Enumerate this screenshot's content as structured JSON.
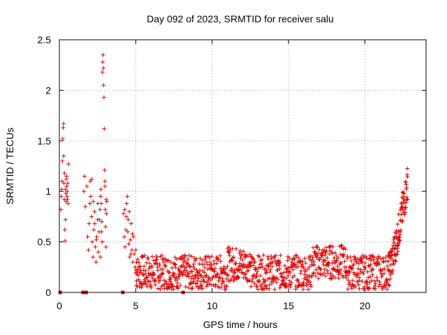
{
  "chart_data": {
    "type": "scatter",
    "title": "Day 092 of 2023, SRMTID for receiver salu",
    "xlabel": "GPS time / hours",
    "ylabel": "SRMTID / TECUs",
    "xlim": [
      0,
      24
    ],
    "ylim": [
      0,
      2.5
    ],
    "xticks": [
      0,
      5,
      10,
      15,
      20
    ],
    "xtick_labels": [
      "0",
      "5",
      "10",
      "15",
      "20"
    ],
    "yticks": [
      0,
      0.5,
      1,
      1.5,
      2,
      2.5
    ],
    "ytick_labels": [
      "0",
      "0.5",
      "1",
      "1.5",
      "2",
      "2.5"
    ],
    "grid": true,
    "marker": "+",
    "series": [
      {
        "name": "SRMTID",
        "color": "#e00000",
        "points": [
          [
            0.05,
            0.0
          ],
          [
            1.55,
            0.0
          ],
          [
            1.75,
            0.0
          ],
          [
            4.15,
            0.0
          ],
          [
            8.1,
            0.0
          ],
          [
            0.1,
            0.82
          ],
          [
            0.12,
            0.95
          ],
          [
            0.15,
            1.02
          ],
          [
            0.18,
            1.1
          ],
          [
            0.2,
            1.3
          ],
          [
            0.22,
            1.52
          ],
          [
            0.25,
            1.63
          ],
          [
            0.27,
            1.67
          ],
          [
            0.3,
            1.08
          ],
          [
            0.32,
            0.92
          ],
          [
            0.35,
            0.62
          ],
          [
            0.37,
            0.51
          ],
          [
            0.4,
            0.72
          ],
          [
            0.42,
            0.98
          ],
          [
            0.45,
            1.12
          ],
          [
            0.48,
            1.05
          ],
          [
            0.5,
            0.95
          ],
          [
            0.52,
            1.0
          ],
          [
            0.55,
            1.08
          ],
          [
            0.57,
            0.88
          ],
          [
            0.6,
            1.27
          ],
          [
            0.28,
            1.35
          ],
          [
            0.33,
            1.18
          ],
          [
            0.38,
            1.02
          ],
          [
            0.43,
            0.9
          ],
          [
            0.47,
            1.15
          ],
          [
            0.53,
            0.92
          ],
          [
            1.6,
            1.0
          ],
          [
            1.65,
            1.15
          ],
          [
            1.7,
            0.85
          ],
          [
            1.8,
            1.05
          ],
          [
            1.85,
            0.55
          ],
          [
            1.9,
            0.42
          ],
          [
            1.95,
            0.68
          ],
          [
            2.0,
            0.88
          ],
          [
            2.02,
            1.1
          ],
          [
            2.05,
            0.95
          ],
          [
            2.1,
            0.75
          ],
          [
            2.15,
            0.5
          ],
          [
            2.2,
            0.35
          ],
          [
            2.25,
            0.62
          ],
          [
            2.3,
            0.8
          ],
          [
            2.35,
            0.45
          ],
          [
            2.4,
            0.3
          ],
          [
            2.45,
            0.55
          ],
          [
            2.5,
            0.72
          ],
          [
            2.55,
            0.4
          ],
          [
            2.6,
            0.6
          ],
          [
            2.65,
            0.82
          ],
          [
            2.7,
            0.95
          ],
          [
            2.72,
            1.02
          ],
          [
            2.75,
            0.88
          ],
          [
            2.78,
            0.7
          ],
          [
            2.8,
            0.5
          ],
          [
            2.82,
            2.18
          ],
          [
            2.84,
            2.28
          ],
          [
            2.86,
            2.35
          ],
          [
            2.88,
            2.22
          ],
          [
            2.9,
            2.05
          ],
          [
            2.92,
            1.93
          ],
          [
            2.94,
            1.62
          ],
          [
            2.96,
            1.21
          ],
          [
            2.98,
            1.05
          ],
          [
            3.0,
            0.82
          ],
          [
            3.02,
            0.65
          ],
          [
            3.05,
            0.45
          ],
          [
            3.08,
            0.78
          ],
          [
            3.1,
            0.9
          ],
          [
            2.12,
            1.12
          ],
          [
            2.22,
            0.9
          ],
          [
            2.32,
            0.68
          ],
          [
            2.42,
            0.52
          ],
          [
            2.52,
            0.88
          ],
          [
            2.62,
            0.72
          ],
          [
            2.68,
            0.35
          ],
          [
            2.76,
            0.6
          ],
          [
            2.98,
            1.1
          ],
          [
            3.07,
            0.92
          ],
          [
            4.2,
            0.78
          ],
          [
            4.25,
            0.55
          ],
          [
            4.3,
            0.45
          ],
          [
            4.35,
            0.62
          ],
          [
            4.4,
            0.88
          ],
          [
            4.45,
            0.95
          ],
          [
            4.5,
            0.72
          ],
          [
            4.55,
            0.48
          ],
          [
            4.6,
            0.35
          ],
          [
            4.65,
            0.52
          ],
          [
            4.7,
            0.68
          ],
          [
            4.75,
            0.42
          ],
          [
            4.8,
            0.3
          ],
          [
            4.85,
            0.55
          ],
          [
            4.9,
            0.38
          ],
          [
            4.95,
            0.25
          ],
          [
            5.0,
            0.42
          ],
          [
            5.05,
            0.3
          ],
          [
            4.28,
            0.82
          ],
          [
            4.38,
            0.75
          ],
          [
            4.48,
            0.6
          ],
          [
            4.58,
            0.8
          ],
          [
            4.68,
            0.38
          ],
          [
            4.78,
            0.58
          ]
        ]
      }
    ],
    "band": {
      "x_start": 5.0,
      "x_end": 21.5,
      "baseline": 0.2,
      "envelope": 0.17
    },
    "tail": {
      "x_start": 21.5,
      "x_end": 22.8,
      "y_start": 0.2,
      "y_end": 1.1
    }
  }
}
